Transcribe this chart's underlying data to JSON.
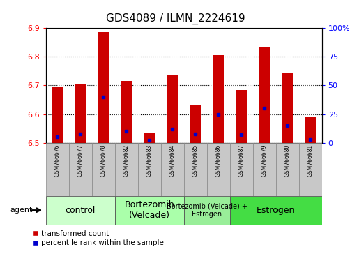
{
  "title": "GDS4089 / ILMN_2224619",
  "samples": [
    "GSM766676",
    "GSM766677",
    "GSM766678",
    "GSM766682",
    "GSM766683",
    "GSM766684",
    "GSM766685",
    "GSM766686",
    "GSM766687",
    "GSM766679",
    "GSM766680",
    "GSM766681"
  ],
  "bar_values": [
    6.695,
    6.705,
    6.885,
    6.715,
    6.535,
    6.735,
    6.63,
    6.805,
    6.685,
    6.835,
    6.745,
    6.59
  ],
  "percentile_values": [
    5,
    8,
    40,
    10,
    2,
    12,
    8,
    25,
    7,
    30,
    15,
    3
  ],
  "bar_base": 6.5,
  "ylim_left": [
    6.5,
    6.9
  ],
  "ylim_right": [
    0,
    100
  ],
  "yticks_left": [
    6.5,
    6.6,
    6.7,
    6.8,
    6.9
  ],
  "yticks_right": [
    0,
    25,
    50,
    75,
    100
  ],
  "ytick_labels_right": [
    "0",
    "25",
    "50",
    "75",
    "100%"
  ],
  "bar_color": "#cc0000",
  "dot_color": "#0000cc",
  "groups": [
    {
      "label": "control",
      "start": 0,
      "end": 3,
      "color": "#ccffcc",
      "fontsize": 9
    },
    {
      "label": "Bortezomib\n(Velcade)",
      "start": 3,
      "end": 6,
      "color": "#aaffaa",
      "fontsize": 9
    },
    {
      "label": "Bortezomib (Velcade) +\nEstrogen",
      "start": 6,
      "end": 8,
      "color": "#99ee99",
      "fontsize": 7
    },
    {
      "label": "Estrogen",
      "start": 8,
      "end": 12,
      "color": "#44dd44",
      "fontsize": 9
    }
  ],
  "agent_label": "agent",
  "legend_bar_label": "transformed count",
  "legend_dot_label": "percentile rank within the sample",
  "grid_color": "#000000",
  "bg_color": "#ffffff",
  "label_area_color": "#c8c8c8",
  "title_fontsize": 11,
  "tick_fontsize": 8,
  "sample_fontsize": 5.5,
  "bar_width": 0.5
}
